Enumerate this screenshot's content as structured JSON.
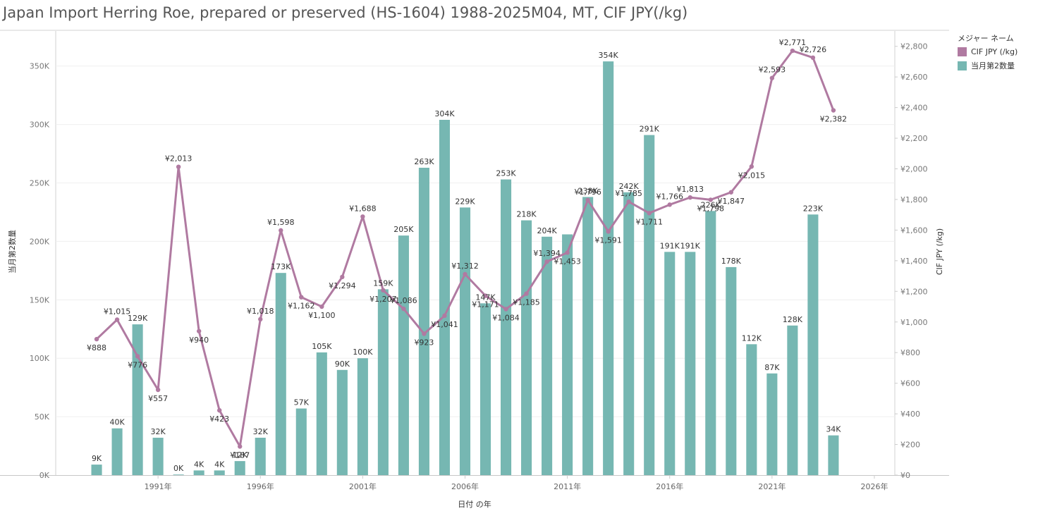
{
  "title": "Japan Import Herring Roe, prepared or preserved (HS-1604) 1988-2025M04, MT, CIF JPY(/kg)",
  "legend": {
    "title": "メジャー ネーム",
    "items": [
      {
        "label": "CIF JPY (/kg)",
        "color": "#b07aa1"
      },
      {
        "label": "当月第2数量",
        "color": "#76b7b2"
      }
    ]
  },
  "chart_data": {
    "type": "bar",
    "title": "Japan Import Herring Roe, prepared or preserved (HS-1604) 1988-2025M04, MT, CIF JPY(/kg)",
    "xlabel": "日付 の年",
    "ylabel_left": "当月第2数量",
    "ylabel_right": "CIF JPY (/kg)",
    "ylim_left": [
      0,
      380000
    ],
    "ylim_right": [
      0,
      2900
    ],
    "xlim": [
      1986,
      2027
    ],
    "left_ticks": [
      {
        "v": 0,
        "label": "0K"
      },
      {
        "v": 50000,
        "label": "50K"
      },
      {
        "v": 100000,
        "label": "100K"
      },
      {
        "v": 150000,
        "label": "150K"
      },
      {
        "v": 200000,
        "label": "200K"
      },
      {
        "v": 250000,
        "label": "250K"
      },
      {
        "v": 300000,
        "label": "300K"
      },
      {
        "v": 350000,
        "label": "350K"
      }
    ],
    "right_ticks": [
      {
        "v": 0,
        "label": "¥0"
      },
      {
        "v": 200,
        "label": "¥200"
      },
      {
        "v": 400,
        "label": "¥400"
      },
      {
        "v": 600,
        "label": "¥600"
      },
      {
        "v": 800,
        "label": "¥800"
      },
      {
        "v": 1000,
        "label": "¥1,000"
      },
      {
        "v": 1200,
        "label": "¥1,200"
      },
      {
        "v": 1400,
        "label": "¥1,400"
      },
      {
        "v": 1600,
        "label": "¥1,600"
      },
      {
        "v": 1800,
        "label": "¥1,800"
      },
      {
        "v": 2000,
        "label": "¥2,000"
      },
      {
        "v": 2200,
        "label": "¥2,200"
      },
      {
        "v": 2400,
        "label": "¥2,400"
      },
      {
        "v": 2600,
        "label": "¥2,600"
      },
      {
        "v": 2800,
        "label": "¥2,800"
      }
    ],
    "x_ticks": [
      {
        "v": 1991,
        "label": "1991年"
      },
      {
        "v": 1996,
        "label": "1996年"
      },
      {
        "v": 2001,
        "label": "2001年"
      },
      {
        "v": 2006,
        "label": "2006年"
      },
      {
        "v": 2011,
        "label": "2011年"
      },
      {
        "v": 2016,
        "label": "2016年"
      },
      {
        "v": 2021,
        "label": "2021年"
      },
      {
        "v": 2026,
        "label": "2026年"
      }
    ],
    "series": [
      {
        "name": "当月第2数量",
        "type": "bar",
        "color": "#76b7b2",
        "x": [
          1988,
          1989,
          1990,
          1991,
          1992,
          1993,
          1994,
          1995,
          1996,
          1997,
          1998,
          1999,
          2000,
          2001,
          2002,
          2003,
          2004,
          2005,
          2006,
          2007,
          2008,
          2009,
          2010,
          2011,
          2012,
          2013,
          2014,
          2015,
          2016,
          2017,
          2018,
          2019,
          2020,
          2021,
          2022,
          2023,
          2024,
          2025
        ],
        "values": [
          9000,
          40000,
          129000,
          32000,
          500,
          4000,
          4000,
          12000,
          32000,
          173000,
          57000,
          105000,
          90000,
          100000,
          159000,
          205000,
          263000,
          304000,
          229000,
          147000,
          253000,
          218000,
          204000,
          206000,
          238000,
          354000,
          242000,
          291000,
          191000,
          191000,
          226000,
          178000,
          112000,
          87000,
          128000,
          223000,
          34000,
          null
        ],
        "labels": [
          "9K",
          "40K",
          "129K",
          "32K",
          "0K",
          "4K",
          "4K",
          "12K",
          "32K",
          "173K",
          "57K",
          "105K",
          "90K",
          "100K",
          "159K",
          "205K",
          "263K",
          "304K",
          "229K",
          "147K",
          "253K",
          "218K",
          "204K",
          "",
          "238K",
          "354K",
          "242K",
          "291K",
          "191K",
          "191K",
          "226K",
          "178K",
          "112K",
          "87K",
          "128K",
          "223K",
          "34K",
          ""
        ]
      },
      {
        "name": "CIF JPY (/kg)",
        "type": "line",
        "color": "#b07aa1",
        "x": [
          1988,
          1989,
          1990,
          1991,
          1992,
          1993,
          1994,
          1995,
          1996,
          1997,
          1998,
          1999,
          2000,
          2001,
          2002,
          2003,
          2004,
          2005,
          2006,
          2007,
          2008,
          2009,
          2010,
          2011,
          2012,
          2013,
          2014,
          2015,
          2016,
          2017,
          2018,
          2019,
          2020,
          2021,
          2022,
          2023,
          2024,
          2025
        ],
        "values": [
          888,
          1015,
          776,
          557,
          2013,
          940,
          423,
          187,
          1018,
          1598,
          1162,
          1100,
          1294,
          1688,
          1207,
          1086,
          923,
          1041,
          1312,
          1171,
          1084,
          1185,
          1394,
          1453,
          1796,
          1591,
          1785,
          1711,
          1766,
          1813,
          1798,
          1847,
          2015,
          2593,
          2771,
          2726,
          2382,
          null
        ],
        "labels": [
          "¥888",
          "¥1,015",
          "¥776",
          "¥557",
          "¥2,013",
          "¥940",
          "¥423",
          "¥187",
          "¥1,018",
          "¥1,598",
          "¥1,162",
          "¥1,100",
          "¥1,294",
          "¥1,688",
          "¥1,207",
          "¥1,086",
          "¥923",
          "¥1,041",
          "¥1,312",
          "¥1,171",
          "¥1,084",
          "¥1,185",
          "¥1,394",
          "¥1,453",
          "¥1,796",
          "¥1,591",
          "¥1,785",
          "¥1,711",
          "¥1,766",
          "¥1,813",
          "¥1,798",
          "¥1,847",
          "¥2,015",
          "¥2,593",
          "¥2,771",
          "¥2,726",
          "¥2,382",
          ""
        ]
      }
    ]
  }
}
